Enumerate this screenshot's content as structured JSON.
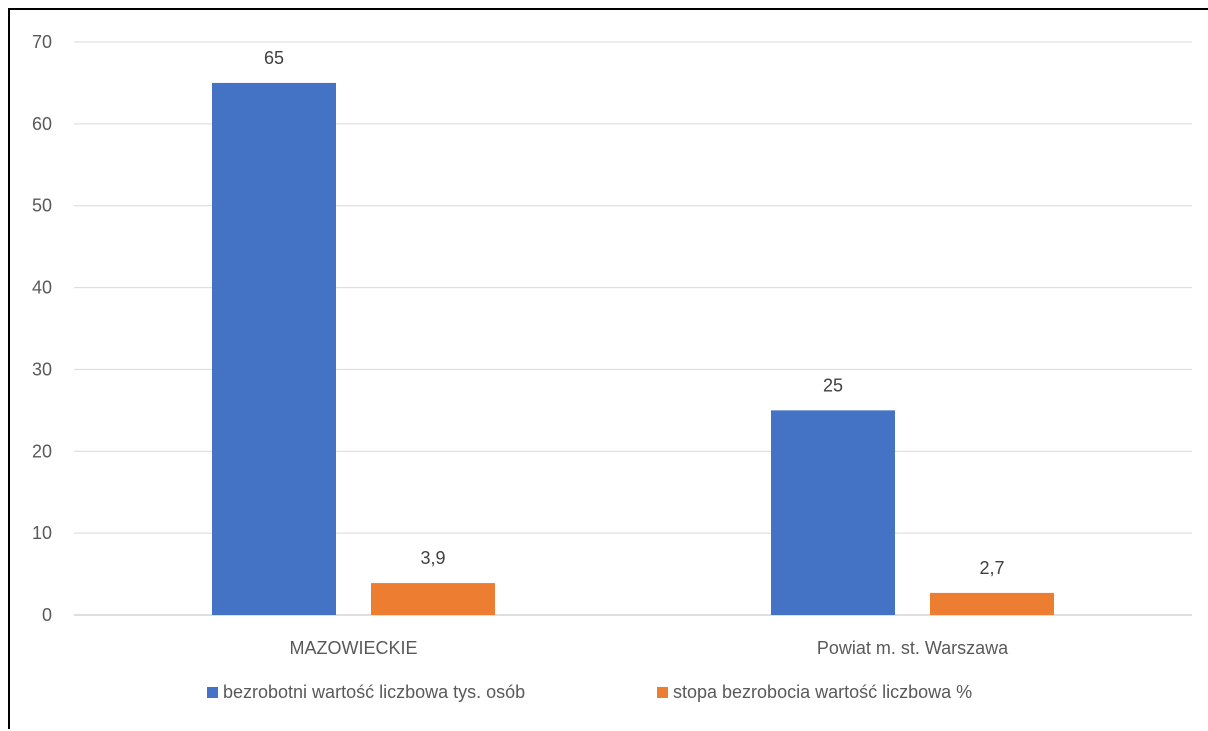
{
  "chart_data": {
    "type": "bar",
    "categories": [
      "MAZOWIECKIE",
      "Powiat m. st. Warszawa"
    ],
    "series": [
      {
        "name": "bezrobotni wartość liczbowa tys. osób",
        "values": [
          65,
          25
        ],
        "labels": [
          "65",
          "25"
        ],
        "color": "#4472C4"
      },
      {
        "name": "stopa bezrobocia wartość liczbowa %",
        "values": [
          3.9,
          2.7
        ],
        "labels": [
          "3,9",
          "2,7"
        ],
        "color": "#ED7D31"
      }
    ],
    "ylim": [
      0,
      70
    ],
    "yticks": [
      0,
      10,
      20,
      30,
      40,
      50,
      60,
      70
    ],
    "grid": true,
    "legend": "bottom",
    "title": "",
    "xlabel": "",
    "ylabel": "",
    "gridColor": "#D9D9D9",
    "axisColor": "#BFBFBF"
  }
}
